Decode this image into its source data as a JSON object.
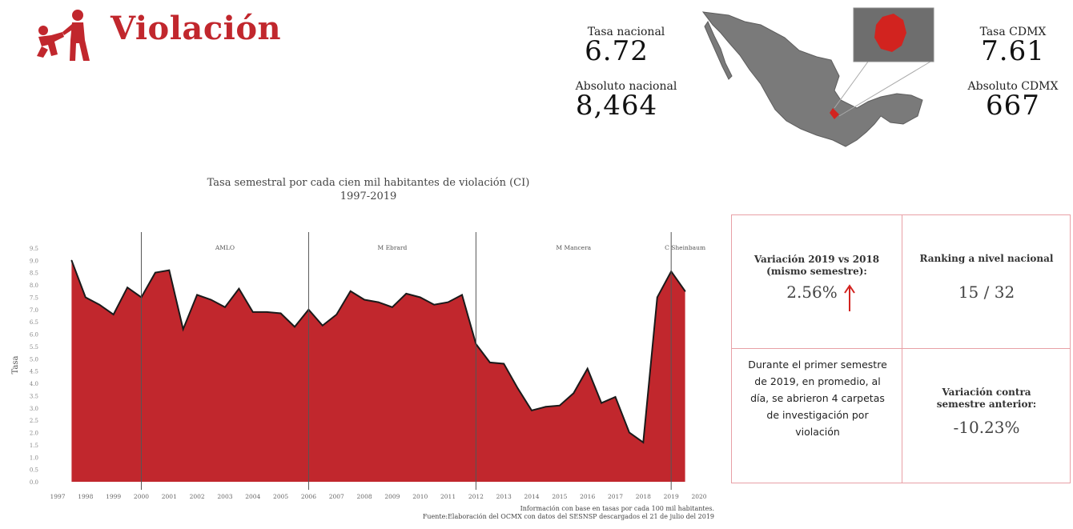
{
  "header": {
    "title": "Violación",
    "icon": "assault-figures-icon",
    "accent_color": "#c1272d"
  },
  "stats": {
    "tasa_nacional_label": "Tasa nacional",
    "tasa_nacional_value": "6.72",
    "absoluto_nacional_label": "Absoluto nacional",
    "absoluto_nacional_value": "8,464",
    "tasa_cdmx_label": "Tasa CDMX",
    "tasa_cdmx_value": "7.61",
    "absoluto_cdmx_label": "Absoluto CDMX",
    "absoluto_cdmx_value": "667"
  },
  "map": {
    "icon": "mexico-map-icon",
    "highlight_color": "#d2231f",
    "base_color": "#7a7a7a"
  },
  "chart_data": {
    "type": "area",
    "title": "Tasa semestral por cada cien mil habitantes de violación (CI)",
    "subtitle": "1997-2019",
    "ylabel": "Tasa",
    "xlabel": "",
    "ylim": [
      0,
      9.5
    ],
    "y_ticks": [
      "0.0",
      "0.5",
      "1.0",
      "1.5",
      "2.0",
      "2.5",
      "3.0",
      "3.5",
      "4.0",
      "4.5",
      "5.0",
      "5.5",
      "6.0",
      "6.5",
      "7.0",
      "7.5",
      "8.0",
      "8.5",
      "9.0",
      "9.5"
    ],
    "x_ticks": [
      "1997",
      "1998",
      "1999",
      "2000",
      "2001",
      "2002",
      "2003",
      "2004",
      "2005",
      "2006",
      "2007",
      "2008",
      "2009",
      "2010",
      "2011",
      "2012",
      "2013",
      "2014",
      "2015",
      "2016",
      "2017",
      "2018",
      "2019",
      "2020"
    ],
    "fill_color": "#c1272d",
    "grid": false,
    "series": [
      {
        "x": [
          1997.5,
          1998.0,
          1998.5,
          1999.0,
          1999.5,
          2000.0,
          2000.5,
          2001.0,
          2001.5,
          2002.0,
          2002.5,
          2003.0,
          2003.5,
          2004.0,
          2004.5,
          2005.0,
          2005.5,
          2006.0,
          2006.5,
          2007.0,
          2007.5,
          2008.0,
          2008.5,
          2009.0,
          2009.5,
          2010.0,
          2010.5,
          2011.0,
          2011.5,
          2012.0,
          2012.5,
          2013.0,
          2013.5,
          2014.0,
          2014.5,
          2015.0,
          2015.5,
          2016.0,
          2016.5,
          2017.0,
          2017.5,
          2018.0,
          2018.5,
          2019.0,
          2019.5
        ],
        "values": [
          9.0,
          7.5,
          7.2,
          6.8,
          7.9,
          7.5,
          8.5,
          8.6,
          6.2,
          7.6,
          7.4,
          7.1,
          7.85,
          6.9,
          6.9,
          6.85,
          6.3,
          7.0,
          6.35,
          6.8,
          7.75,
          7.4,
          7.3,
          7.1,
          7.65,
          7.5,
          7.2,
          7.3,
          7.6,
          5.6,
          4.85,
          4.8,
          3.8,
          2.9,
          3.05,
          3.1,
          3.6,
          4.6,
          3.2,
          3.45,
          2.0,
          1.6,
          7.5,
          8.55,
          7.75
        ]
      }
    ],
    "annotations": [
      {
        "x": 2000.0,
        "label": "AMLO"
      },
      {
        "x": 2006.0,
        "label": "M Ebrard"
      },
      {
        "x": 2012.0,
        "label": "M Mancera"
      },
      {
        "x": 2019.0,
        "label": "C Sheinbaum"
      }
    ],
    "notes": [
      "Información con base en tasas por cada 100 mil habitantes.",
      "Fuente:Elaboración del OCMX con datos del SESNSP descargados el 21 de julio del 2019"
    ]
  },
  "info": {
    "variacion_label": "Variación 2019 vs 2018 (mismo semestre):",
    "variacion_value": "2.56%",
    "arrow_color": "#d2231f",
    "ranking_label": "Ranking a nivel nacional",
    "ranking_value": "15 / 32",
    "promedio_text": "Durante el primer semestre de 2019, en promedio, al día, se abrieron 4 carpetas de investigación por violación",
    "variacion_anterior_label": "Variación contra semestre anterior:",
    "variacion_anterior_value": "-10.23%"
  }
}
